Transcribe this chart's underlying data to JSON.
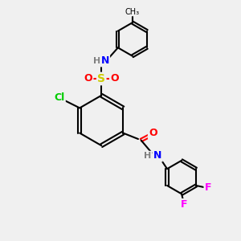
{
  "background_color": "#f0f0f0",
  "bond_color": "#000000",
  "atom_colors": {
    "N": "#0000ff",
    "O": "#ff0000",
    "S": "#cccc00",
    "Cl": "#00cc00",
    "F": "#ff00ff",
    "H": "#808080",
    "C": "#000000"
  },
  "title": "",
  "figsize": [
    3.0,
    3.0
  ],
  "dpi": 100
}
